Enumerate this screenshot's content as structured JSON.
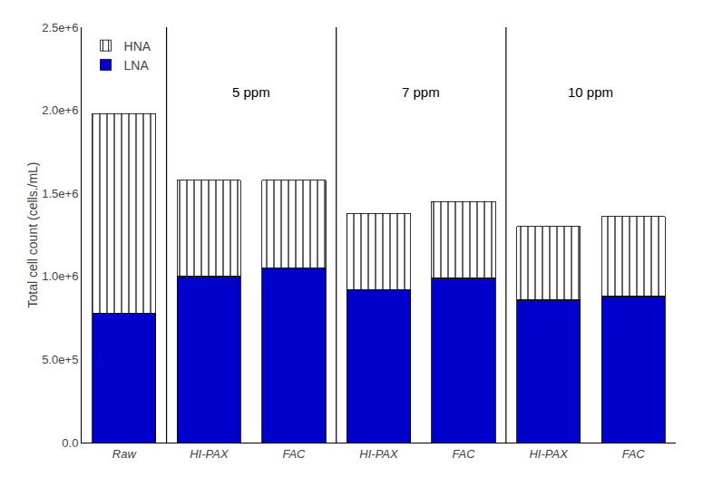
{
  "chart_data": {
    "type": "bar",
    "stacked": true,
    "categories": [
      "Raw",
      "HI-PAX",
      "FAC",
      "HI-PAX",
      "FAC",
      "HI-PAX",
      "FAC"
    ],
    "series": [
      {
        "name": "LNA",
        "color": "#0000CC",
        "values": [
          780000,
          1000000,
          1050000,
          920000,
          990000,
          860000,
          880000
        ]
      },
      {
        "name": "HNA",
        "color": "#00EEEE",
        "values": [
          1200000,
          580000,
          530000,
          460000,
          460000,
          440000,
          480000
        ]
      }
    ],
    "ylabel": "Total cell count (cells./mL)",
    "ylim": [
      0,
      2500000
    ],
    "yticks": [
      {
        "value": 0,
        "label": "0.0"
      },
      {
        "value": 500000,
        "label": "5.0e+5"
      },
      {
        "value": 1000000,
        "label": "1.0e+6"
      },
      {
        "value": 1500000,
        "label": "1.5e+6"
      },
      {
        "value": 2000000,
        "label": "2.0e+6"
      },
      {
        "value": 2500000,
        "label": "2.5e+6"
      }
    ],
    "annotations": [
      {
        "text": "5 ppm",
        "x": 1.5,
        "y": 2050000
      },
      {
        "text": "7 ppm",
        "x": 3.5,
        "y": 2050000
      },
      {
        "text": "10 ppm",
        "x": 5.5,
        "y": 2050000
      }
    ],
    "legend": "upper left",
    "grid": false
  }
}
